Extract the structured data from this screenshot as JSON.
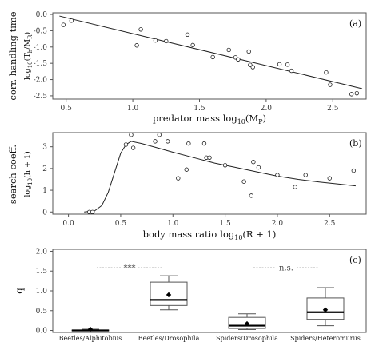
{
  "chart_data": [
    {
      "panel": "(a)",
      "type": "scatter",
      "ylabel_main": "corr. handling time",
      "ylabel_sub": "log",
      "ylabel_sub2": "10",
      "ylabel_sub3": "(T",
      "ylabel_sub4": "h",
      "ylabel_sub5": "/M",
      "ylabel_sub6": "R",
      "ylabel_sub7": ")",
      "xlabel": "predator mass log",
      "xlabel_sub": "10",
      "xlabel_tail": "(M",
      "xlabel_tail_sub": "P",
      "xlabel_close": ")",
      "xlim": [
        0.4,
        2.75
      ],
      "ylim": [
        -2.6,
        0.05
      ],
      "xticks": [
        "0.5",
        "1.0",
        "1.5",
        "2.0",
        "2.5"
      ],
      "yticks": [
        "0.0",
        "-0.5",
        "-1.0",
        "-1.5",
        "-2.0",
        "-2.5"
      ],
      "points": [
        [
          0.48,
          -0.32
        ],
        [
          0.54,
          -0.19
        ],
        [
          1.03,
          -0.95
        ],
        [
          1.06,
          -0.46
        ],
        [
          1.17,
          -0.8
        ],
        [
          1.25,
          -0.82
        ],
        [
          1.41,
          -0.62
        ],
        [
          1.45,
          -0.94
        ],
        [
          1.6,
          -1.31
        ],
        [
          1.72,
          -1.09
        ],
        [
          1.77,
          -1.32
        ],
        [
          1.79,
          -1.38
        ],
        [
          1.87,
          -1.14
        ],
        [
          1.88,
          -1.55
        ],
        [
          1.9,
          -1.62
        ],
        [
          2.1,
          -1.53
        ],
        [
          2.16,
          -1.54
        ],
        [
          2.19,
          -1.73
        ],
        [
          2.45,
          -1.78
        ],
        [
          2.48,
          -2.16
        ],
        [
          2.64,
          -2.45
        ],
        [
          2.68,
          -2.42
        ]
      ],
      "fit": {
        "x": [
          0.45,
          2.72
        ],
        "y": [
          -0.05,
          -2.28
        ]
      }
    },
    {
      "panel": "(b)",
      "type": "scatter",
      "ylabel_main": "search coeff.",
      "ylabel_sub": "log",
      "ylabel_sub2": "10",
      "ylabel_sub3": "(h + 1)",
      "xlabel": "body mass ratio",
      "xlabel_tail": "log",
      "xlabel_sub": "10",
      "xlabel_close": "(R + 1)",
      "xlim": [
        -0.15,
        2.85
      ],
      "ylim": [
        -0.1,
        3.65
      ],
      "xticks": [
        "0.0",
        "0.5",
        "1.0",
        "1.5",
        "2.0",
        "2.5"
      ],
      "yticks": [
        "0",
        "1",
        "2",
        "3"
      ],
      "points": [
        [
          0.2,
          0.0
        ],
        [
          0.23,
          0.0
        ],
        [
          0.55,
          3.1
        ],
        [
          0.6,
          3.55
        ],
        [
          0.62,
          2.95
        ],
        [
          0.83,
          3.25
        ],
        [
          0.87,
          3.55
        ],
        [
          0.95,
          3.25
        ],
        [
          1.05,
          1.55
        ],
        [
          1.13,
          1.95
        ],
        [
          1.15,
          3.15
        ],
        [
          1.3,
          3.15
        ],
        [
          1.32,
          2.5
        ],
        [
          1.35,
          2.5
        ],
        [
          1.5,
          2.15
        ],
        [
          1.68,
          1.4
        ],
        [
          1.75,
          0.75
        ],
        [
          1.77,
          2.3
        ],
        [
          1.82,
          2.05
        ],
        [
          2.0,
          1.7
        ],
        [
          2.17,
          1.15
        ],
        [
          2.27,
          1.7
        ],
        [
          2.5,
          1.55
        ],
        [
          2.73,
          1.9
        ]
      ],
      "fit_curve": [
        [
          0.15,
          0.0
        ],
        [
          0.25,
          0.05
        ],
        [
          0.32,
          0.3
        ],
        [
          0.38,
          0.9
        ],
        [
          0.44,
          1.8
        ],
        [
          0.5,
          2.7
        ],
        [
          0.55,
          3.1
        ],
        [
          0.6,
          3.25
        ],
        [
          0.7,
          3.15
        ],
        [
          0.85,
          2.95
        ],
        [
          1.0,
          2.75
        ],
        [
          1.2,
          2.5
        ],
        [
          1.4,
          2.25
        ],
        [
          1.6,
          2.05
        ],
        [
          1.8,
          1.85
        ],
        [
          2.0,
          1.65
        ],
        [
          2.2,
          1.5
        ],
        [
          2.4,
          1.38
        ],
        [
          2.6,
          1.28
        ],
        [
          2.75,
          1.2
        ]
      ]
    },
    {
      "panel": "(c)",
      "type": "box",
      "ylabel": "q",
      "ylim": [
        -0.05,
        2.05
      ],
      "yticks": [
        "0.0",
        "0.5",
        "1.0",
        "1.5",
        "2.0"
      ],
      "categories": [
        "Beetles/Alphitobius",
        "Beetles/Drosophila",
        "Spiders/Drosophila",
        "Spiders/Heteromurus"
      ],
      "boxes": [
        {
          "min": 0.0,
          "q1": 0.0,
          "median": 0.0,
          "q3": 0.01,
          "max": 0.03,
          "mean": 0.03
        },
        {
          "min": 0.52,
          "q1": 0.63,
          "median": 0.77,
          "q3": 1.22,
          "max": 1.38,
          "mean": 0.9
        },
        {
          "min": 0.02,
          "q1": 0.05,
          "median": 0.12,
          "q3": 0.33,
          "max": 0.42,
          "mean": 0.17
        },
        {
          "min": 0.12,
          "q1": 0.28,
          "median": 0.46,
          "q3": 0.82,
          "max": 1.08,
          "mean": 0.52
        }
      ],
      "comparisons": [
        {
          "from": 0,
          "to": 1,
          "label": "***"
        },
        {
          "from": 2,
          "to": 3,
          "label": "n.s."
        }
      ]
    }
  ]
}
